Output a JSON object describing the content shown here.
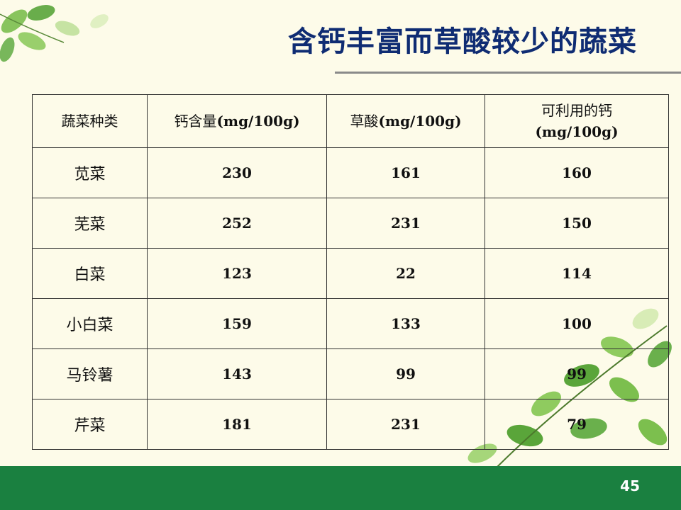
{
  "title": "含钙丰富而草酸较少的蔬菜",
  "page_number": "45",
  "table": {
    "headers": [
      {
        "label": "蔬菜种类",
        "unit": ""
      },
      {
        "label": "钙含量",
        "unit": "(mg/100g)"
      },
      {
        "label": "草酸",
        "unit": "(mg/100g)"
      },
      {
        "label": "可利用的钙",
        "unit": "(mg/100g)"
      }
    ],
    "rows": [
      {
        "name": "苋菜",
        "calcium": "230",
        "oxalic": "161",
        "available": "160"
      },
      {
        "name": "芜菜",
        "calcium": "252",
        "oxalic": "231",
        "available": "150"
      },
      {
        "name": "白菜",
        "calcium": "123",
        "oxalic": "22",
        "available": "114"
      },
      {
        "name": "小白菜",
        "calcium": "159",
        "oxalic": "133",
        "available": "100"
      },
      {
        "name": "马铃薯",
        "calcium": "143",
        "oxalic": "99",
        "available": "99"
      },
      {
        "name": "芹菜",
        "calcium": "181",
        "oxalic": "231",
        "available": "79"
      }
    ]
  },
  "colors": {
    "background": "#fdfbe9",
    "title": "#0f2c73",
    "footer": "#1a8040",
    "leaf": "#6ab04c"
  }
}
